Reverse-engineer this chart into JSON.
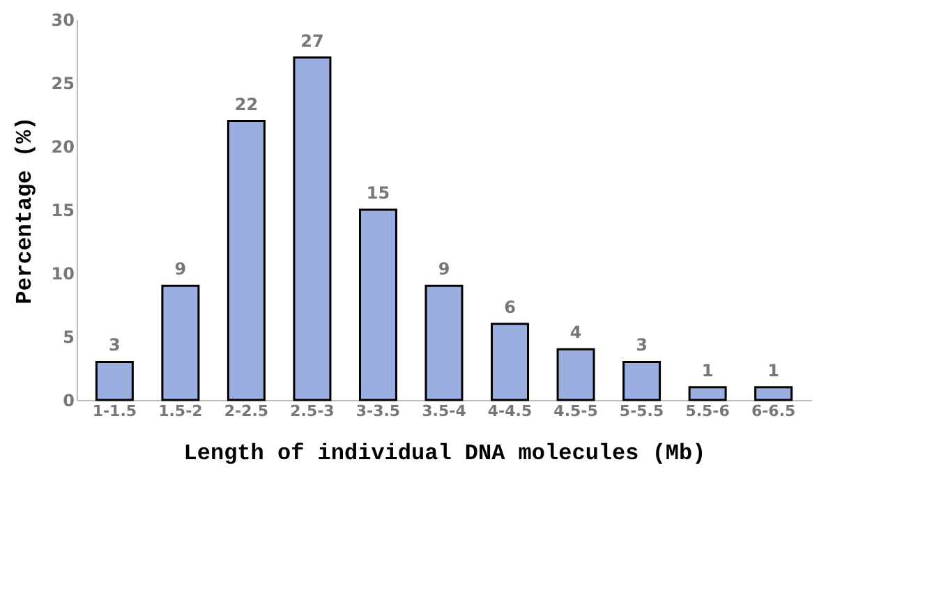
{
  "chart_data": {
    "type": "bar",
    "xlabel": "Length of individual DNA molecules (Mb)",
    "ylabel": "Percentage (%)",
    "categories": [
      "1-1.5",
      "1.5-2",
      "2-2.5",
      "2.5-3",
      "3-3.5",
      "3.5-4",
      "4-4.5",
      "4.5-5",
      "5-5.5",
      "5.5-6",
      "6-6.5"
    ],
    "values": [
      3,
      9,
      22,
      27,
      15,
      9,
      6,
      4,
      3,
      1,
      1
    ],
    "color": "#9aaee0",
    "ylim": [
      0,
      30
    ],
    "yticks": [
      0,
      5,
      10,
      15,
      20,
      25,
      30
    ],
    "data_labels": true,
    "grid": false
  }
}
